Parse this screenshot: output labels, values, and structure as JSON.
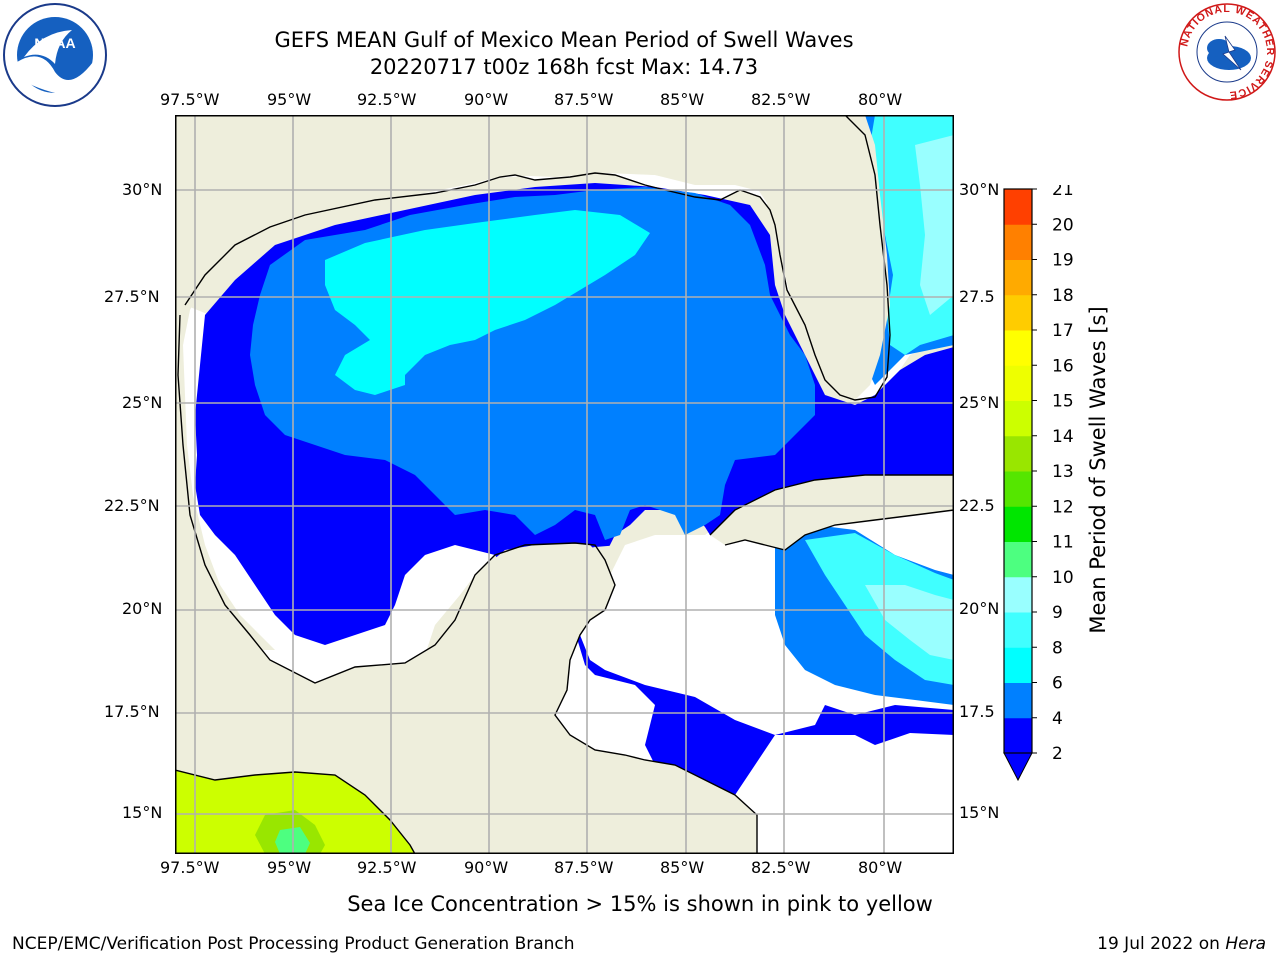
{
  "title": {
    "line1": "GEFS MEAN Gulf of Mexico Mean Period of Swell Waves",
    "line2": "20220717 t00z 168h fcst   Max: 14.73"
  },
  "map": {
    "lon_ticks": [
      "97.5°W",
      "95°W",
      "92.5°W",
      "90°W",
      "87.5°W",
      "85°W",
      "82.5°W",
      "80°W"
    ],
    "lat_ticks_left": [
      "30°N",
      "27.5°N",
      "25°N",
      "22.5°N",
      "20°N",
      "17.5°N",
      "15°N"
    ],
    "lat_ticks_right": [
      "30°N",
      "27.5",
      "25°N",
      "22.5",
      "20°N",
      "17.5",
      "15°N"
    ],
    "lon_range": [
      -98,
      -78.3
    ],
    "lat_range": [
      14,
      31.8
    ],
    "gridlines": true,
    "colors": {
      "land": "#eeeedc",
      "no_data_sea": "#ffffff",
      "coast": "#000000",
      "grid": "#b0b0b0"
    }
  },
  "colorbar": {
    "label": "Mean Period of Swell Waves [s]",
    "ticks": [
      "2",
      "4",
      "6",
      "8",
      "9",
      "10",
      "11",
      "12",
      "13",
      "14",
      "15",
      "16",
      "17",
      "18",
      "19",
      "20",
      "21"
    ],
    "levels": [
      2,
      4,
      6,
      8,
      9,
      10,
      11,
      12,
      13,
      14,
      15,
      16,
      17,
      18,
      19,
      20,
      21
    ],
    "colors": [
      "#0000ff",
      "#0080ff",
      "#00ffff",
      "#40ffff",
      "#99ffff",
      "#4dff80",
      "#00e600",
      "#55e600",
      "#99e600",
      "#ccff00",
      "#eeff00",
      "#ffff00",
      "#ffcc00",
      "#ffaa00",
      "#ff8000",
      "#ff4000",
      "#ff0000"
    ],
    "extend": "min"
  },
  "footer": {
    "note": "Sea Ice Concentration > 15% is shown in pink to yellow",
    "credit": "NCEP/EMC/Verification Post Processing Product Generation Branch",
    "date_prefix": "19 Jul 2022 on ",
    "date_host": "Hera"
  },
  "logos": {
    "left_text": "NOAA",
    "right_text": "NATIONAL WEATHER SERVICE"
  }
}
